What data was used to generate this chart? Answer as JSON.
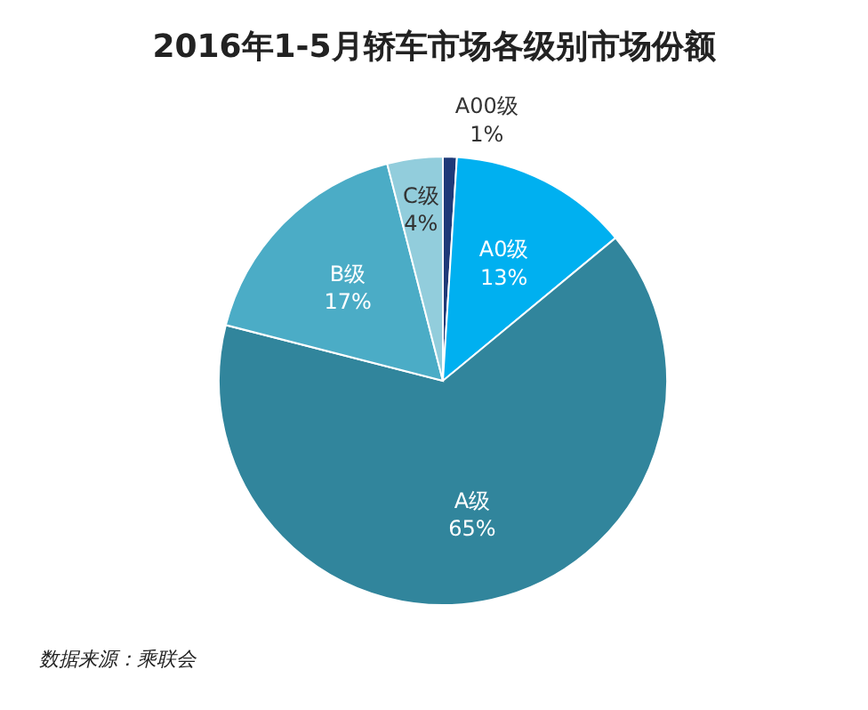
{
  "chart_data": {
    "type": "pie",
    "title": "2016年1-5月轿车市场各级别市场份额",
    "categories": [
      "A00级",
      "A0级",
      "A级",
      "B级",
      "C级"
    ],
    "values": [
      1,
      13,
      65,
      17,
      4
    ],
    "value_labels": [
      "1%",
      "13%",
      "65%",
      "17%",
      "4%"
    ],
    "colors": [
      "#1f3a78",
      "#00b0f0",
      "#31859c",
      "#4bacc6",
      "#92cddc"
    ],
    "annotations": [
      "数据来源：乘联会"
    ]
  }
}
